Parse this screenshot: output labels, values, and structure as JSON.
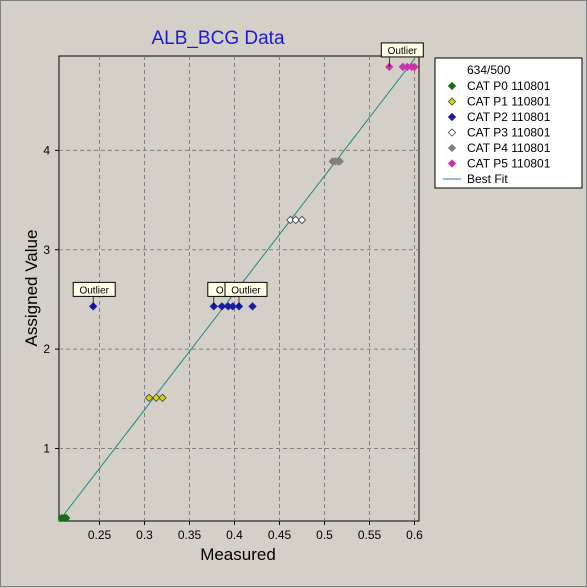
{
  "chart_data": {
    "type": "scatter",
    "title": "ALB_BCG Data",
    "xlabel": "Measured",
    "ylabel": "Assigned Value",
    "xlim": [
      0.205,
      0.605
    ],
    "ylim": [
      0.27,
      4.95
    ],
    "x_ticks": [
      0.25,
      0.3,
      0.35,
      0.4,
      0.45,
      0.5,
      0.55,
      0.6
    ],
    "x_tick_labels": [
      "0.25",
      "0.3",
      "0.35",
      "0.4",
      "0.45",
      "0.5",
      "0.55",
      "0.6"
    ],
    "y_ticks": [
      1,
      2,
      3,
      4
    ],
    "y_tick_labels": [
      "1",
      "2",
      "3",
      "4"
    ],
    "grid": true,
    "legend_position": "right",
    "legend_header": "634/500",
    "series": [
      {
        "name": "CAT P0 110801",
        "color": "#1a6b1a",
        "marker": "filled-diamond",
        "points": [
          [
            0.208,
            0.3
          ],
          [
            0.211,
            0.3
          ],
          [
            0.213,
            0.3
          ]
        ]
      },
      {
        "name": "CAT P1 110801",
        "color": "#d8d800",
        "marker": "hollow-diamond",
        "points": [
          [
            0.305,
            1.51
          ],
          [
            0.313,
            1.51
          ],
          [
            0.32,
            1.51
          ]
        ]
      },
      {
        "name": "CAT P2 110801",
        "color": "#1a1aa6",
        "marker": "filled-diamond",
        "points": [
          [
            0.243,
            2.43
          ],
          [
            0.377,
            2.43
          ],
          [
            0.386,
            2.43
          ],
          [
            0.393,
            2.43
          ],
          [
            0.398,
            2.43
          ],
          [
            0.405,
            2.43
          ],
          [
            0.42,
            2.43
          ]
        ]
      },
      {
        "name": "CAT P3 110801",
        "color": "#ffffff",
        "marker": "hollow-diamond",
        "points": [
          [
            0.462,
            3.3
          ],
          [
            0.468,
            3.3
          ],
          [
            0.475,
            3.3
          ]
        ]
      },
      {
        "name": "CAT P4 110801",
        "color": "#808080",
        "marker": "filled-diamond",
        "points": [
          [
            0.509,
            3.89
          ],
          [
            0.512,
            3.89
          ],
          [
            0.515,
            3.89
          ],
          [
            0.517,
            3.89
          ]
        ]
      },
      {
        "name": "CAT P5 110801",
        "color": "#cc33aa",
        "marker": "filled-diamond",
        "points": [
          [
            0.572,
            4.84
          ],
          [
            0.587,
            4.84
          ],
          [
            0.592,
            4.84
          ],
          [
            0.597,
            4.84
          ],
          [
            0.6,
            4.84
          ]
        ]
      }
    ],
    "best_fit": {
      "name": "Best Fit",
      "color": "#1a8a8a",
      "from": [
        0.205,
        0.27
      ],
      "to": [
        0.6,
        4.92
      ]
    },
    "annotations": [
      {
        "text": "Outlier",
        "x": 0.243,
        "y": 2.43
      },
      {
        "text": "Outlier",
        "x": 0.572,
        "y": 4.84
      },
      {
        "text": "O",
        "x": 0.377,
        "y": 2.43
      },
      {
        "text": "Outlier",
        "x": 0.405,
        "y": 2.43
      }
    ]
  }
}
